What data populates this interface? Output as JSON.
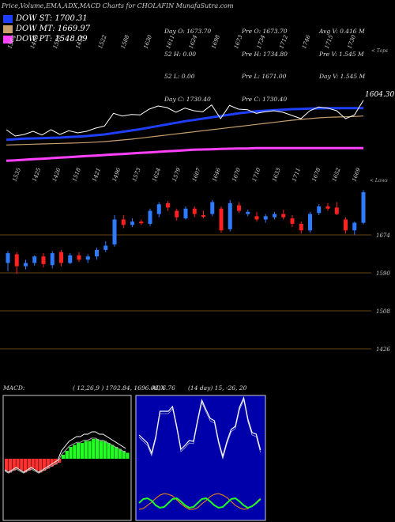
{
  "chart_data": {
    "title": "Price,Volume,EMA,ADX,MACD Charts for CHOLAFIN  MunafaSutra.com",
    "type": "candlestick",
    "ema_legend": [
      {
        "label": "DOW ST: 1700.31",
        "color": "#1f3fff"
      },
      {
        "label": "DOW MT: 1669.97",
        "color": "#c8a06e"
      },
      {
        "label": "DOW PT: 1548.09",
        "color": "#ff40ff"
      }
    ],
    "stats": {
      "col1": [
        "Day O: 1673.70",
        "52 H: 0.00",
        "52 L: 0.00",
        "Day C: 1730.40"
      ],
      "col2": [
        "Pre O: 1673.70",
        "Pre H: 1734.80",
        "Pre L: 1671.00",
        "Pre C: 1730.40"
      ],
      "col3": [
        "Avg V: 0.416 M",
        "Pre V: 1.545 M",
        "Day V: 1.545 M"
      ]
    },
    "top_labels": [
      "1564",
      "1488",
      "1528",
      "1454",
      "1522",
      "1588",
      "1630",
      "1611",
      "1624",
      "1698",
      "1673",
      "1734",
      "1712",
      "1746",
      "1715",
      "1730"
    ],
    "top_label_side": "< Tops",
    "low_labels": [
      "1535",
      "1425",
      "1426",
      "1518",
      "1421",
      "1496",
      "1573",
      "1624",
      "1579",
      "1607",
      "1646",
      "1670",
      "1710",
      "1633",
      "1711",
      "1678",
      "1652",
      "1669"
    ],
    "low_label_side": "< Lows",
    "price_tags": [
      "1604.30"
    ],
    "y_levels": [
      "1674",
      "1590",
      "1508",
      "1426"
    ],
    "candles": [
      {
        "o": 1600,
        "c": 1618,
        "h": 1622,
        "l": 1585
      },
      {
        "o": 1616,
        "c": 1594,
        "h": 1620,
        "l": 1580
      },
      {
        "o": 1594,
        "c": 1600,
        "h": 1606,
        "l": 1588
      },
      {
        "o": 1600,
        "c": 1612,
        "h": 1614,
        "l": 1595
      },
      {
        "o": 1612,
        "c": 1598,
        "h": 1618,
        "l": 1592
      },
      {
        "o": 1596,
        "c": 1618,
        "h": 1622,
        "l": 1590
      },
      {
        "o": 1620,
        "c": 1600,
        "h": 1624,
        "l": 1594
      },
      {
        "o": 1600,
        "c": 1614,
        "h": 1618,
        "l": 1598
      },
      {
        "o": 1614,
        "c": 1606,
        "h": 1620,
        "l": 1602
      },
      {
        "o": 1606,
        "c": 1612,
        "h": 1616,
        "l": 1600
      },
      {
        "o": 1612,
        "c": 1624,
        "h": 1628,
        "l": 1606
      },
      {
        "o": 1624,
        "c": 1632,
        "h": 1640,
        "l": 1620
      },
      {
        "o": 1634,
        "c": 1680,
        "h": 1688,
        "l": 1630
      },
      {
        "o": 1680,
        "c": 1670,
        "h": 1688,
        "l": 1664
      },
      {
        "o": 1670,
        "c": 1676,
        "h": 1682,
        "l": 1666
      },
      {
        "o": 1676,
        "c": 1674,
        "h": 1680,
        "l": 1670
      },
      {
        "o": 1672,
        "c": 1696,
        "h": 1700,
        "l": 1668
      },
      {
        "o": 1690,
        "c": 1708,
        "h": 1712,
        "l": 1684
      },
      {
        "o": 1710,
        "c": 1702,
        "h": 1714,
        "l": 1696
      },
      {
        "o": 1696,
        "c": 1684,
        "h": 1700,
        "l": 1678
      },
      {
        "o": 1682,
        "c": 1700,
        "h": 1704,
        "l": 1680
      },
      {
        "o": 1700,
        "c": 1690,
        "h": 1704,
        "l": 1684
      },
      {
        "o": 1688,
        "c": 1686,
        "h": 1696,
        "l": 1682
      },
      {
        "o": 1690,
        "c": 1712,
        "h": 1716,
        "l": 1686
      },
      {
        "o": 1700,
        "c": 1660,
        "h": 1704,
        "l": 1656
      },
      {
        "o": 1662,
        "c": 1710,
        "h": 1716,
        "l": 1658
      },
      {
        "o": 1706,
        "c": 1696,
        "h": 1712,
        "l": 1692
      },
      {
        "o": 1690,
        "c": 1694,
        "h": 1698,
        "l": 1686
      },
      {
        "o": 1686,
        "c": 1680,
        "h": 1694,
        "l": 1676
      },
      {
        "o": 1680,
        "c": 1686,
        "h": 1690,
        "l": 1674
      },
      {
        "o": 1684,
        "c": 1690,
        "h": 1694,
        "l": 1680
      },
      {
        "o": 1690,
        "c": 1684,
        "h": 1698,
        "l": 1680
      },
      {
        "o": 1682,
        "c": 1672,
        "h": 1688,
        "l": 1666
      },
      {
        "o": 1672,
        "c": 1660,
        "h": 1676,
        "l": 1654
      },
      {
        "o": 1660,
        "c": 1690,
        "h": 1694,
        "l": 1656
      },
      {
        "o": 1692,
        "c": 1704,
        "h": 1708,
        "l": 1688
      },
      {
        "o": 1704,
        "c": 1700,
        "h": 1710,
        "l": 1696
      },
      {
        "o": 1702,
        "c": 1690,
        "h": 1712,
        "l": 1688
      },
      {
        "o": 1680,
        "c": 1660,
        "h": 1684,
        "l": 1654
      },
      {
        "o": 1660,
        "c": 1674,
        "h": 1676,
        "l": 1652
      },
      {
        "o": 1674,
        "c": 1730,
        "h": 1734,
        "l": 1671
      }
    ],
    "ema_series": {
      "short": [
        1580,
        1582,
        1584,
        1585,
        1586,
        1587,
        1588,
        1590,
        1592,
        1594,
        1597,
        1600,
        1605,
        1610,
        1615,
        1620,
        1626,
        1632,
        1638,
        1644,
        1650,
        1655,
        1660,
        1665,
        1670,
        1675,
        1680,
        1684,
        1688,
        1690,
        1692,
        1694,
        1696,
        1697,
        1698,
        1699,
        1700,
        1700,
        1700,
        1700,
        1700
      ],
      "mid": [
        1560,
        1561,
        1562,
        1563,
        1564,
        1565,
        1566,
        1567,
        1568,
        1569,
        1571,
        1573,
        1576,
        1579,
        1582,
        1586,
        1590,
        1594,
        1598,
        1602,
        1606,
        1610,
        1614,
        1618,
        1622,
        1626,
        1630,
        1634,
        1638,
        1642,
        1646,
        1650,
        1654,
        1657,
        1660,
        1663,
        1665,
        1666,
        1667,
        1668,
        1670
      ],
      "long": [
        1500,
        1502,
        1504,
        1506,
        1508,
        1510,
        1512,
        1514,
        1516,
        1518,
        1520,
        1522,
        1524,
        1526,
        1528,
        1530,
        1532,
        1534,
        1536,
        1538,
        1540,
        1542,
        1543,
        1544,
        1545,
        1546,
        1547,
        1547,
        1548,
        1548,
        1548,
        1548,
        1548,
        1548,
        1548,
        1548,
        1548,
        1548,
        1548,
        1548,
        1548
      ]
    },
    "macd": {
      "label": "MACD:",
      "params": "( 12,26,9 ) 1702.84,  1696.08, 6.76",
      "bars": [
        -6,
        -7,
        -6,
        -5,
        -6,
        -7,
        -6,
        -5,
        -6,
        -7,
        -6,
        -5,
        -4,
        -3,
        -2,
        2,
        4,
        6,
        7,
        8,
        8,
        9,
        9,
        10,
        10,
        9,
        9,
        8,
        7,
        6,
        5,
        4,
        3
      ]
    },
    "adx": {
      "label": "ADX",
      "params": "(14  day) 15, -26, 20"
    }
  }
}
